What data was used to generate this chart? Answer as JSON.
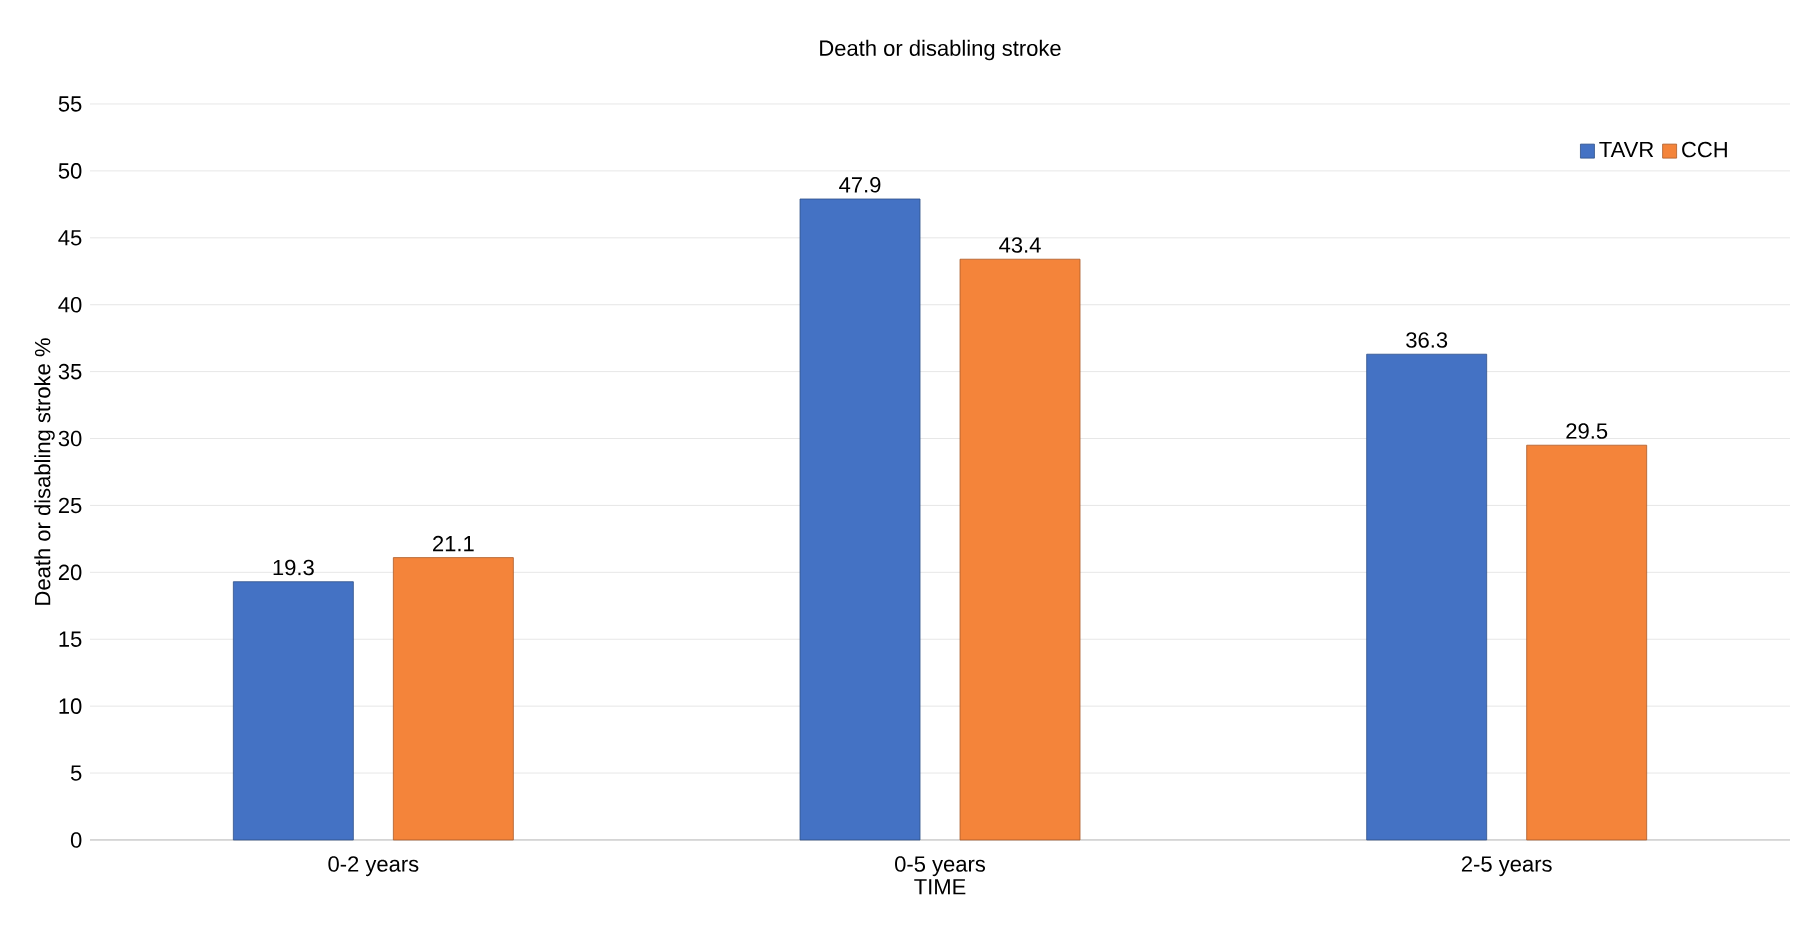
{
  "chart_data": {
    "type": "bar",
    "title": "Death or disabling stroke",
    "xlabel": "TIME",
    "ylabel": "Death or disabling stroke %",
    "categories": [
      "0-2 years",
      "0-5 years",
      "2-5 years"
    ],
    "series": [
      {
        "name": "TAVR",
        "color": "#4472c4",
        "values": [
          19.3,
          47.9,
          36.3
        ]
      },
      {
        "name": "CCH",
        "color": "#f4843a",
        "values": [
          21.1,
          43.4,
          29.5
        ]
      }
    ],
    "ylim": [
      0,
      55
    ],
    "yticks": [
      0,
      5,
      10,
      15,
      20,
      25,
      30,
      35,
      40,
      45,
      50,
      55
    ],
    "grid": "y",
    "legend": "top right",
    "data_labels": true
  }
}
